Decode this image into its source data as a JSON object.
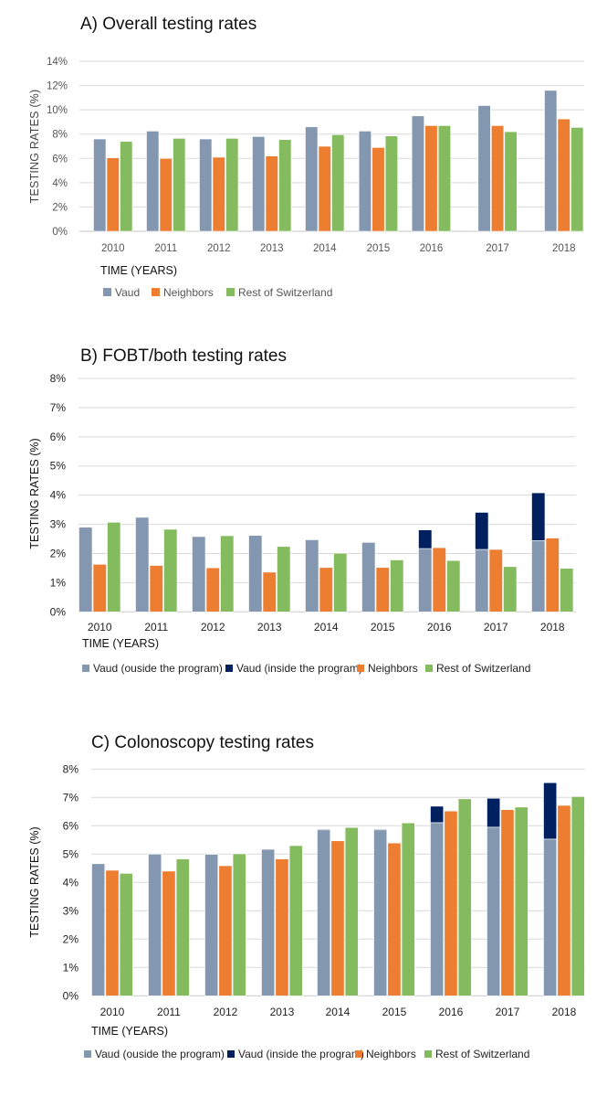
{
  "chart_data": [
    {
      "id": "A",
      "type": "bar",
      "title": "A) Overall testing rates",
      "xlabel": "TIME (YEARS)",
      "ylabel": "TESTING RATES (%)",
      "ylim": [
        0,
        14
      ],
      "yticks": [
        "0%",
        "2%",
        "4%",
        "6%",
        "8%",
        "10%",
        "12%",
        "14%"
      ],
      "ytick_values": [
        0,
        2,
        4,
        6,
        8,
        10,
        12,
        14
      ],
      "grid": true,
      "legend_position": "bottom-left",
      "categories": [
        "2010",
        "2011",
        "2012",
        "2013",
        "2014",
        "2015",
        "2016",
        "2017",
        "2018"
      ],
      "series": [
        {
          "name": "Vaud",
          "color": "#8497b0",
          "values": [
            7.6,
            8.25,
            7.6,
            7.8,
            8.6,
            8.25,
            9.5,
            10.35,
            11.6
          ]
        },
        {
          "name": "Neighbors",
          "color": "#ed7d31",
          "values": [
            6.05,
            6.0,
            6.1,
            6.2,
            7.0,
            6.9,
            8.7,
            8.7,
            9.25
          ]
        },
        {
          "name": "Rest of Switzerland",
          "color": "#84bb5f",
          "values": [
            7.4,
            7.65,
            7.65,
            7.55,
            7.95,
            7.85,
            8.7,
            8.2,
            8.55
          ]
        }
      ]
    },
    {
      "id": "B",
      "type": "bar",
      "stacked_first_group": true,
      "title": "B) FOBT/both testing rates",
      "xlabel": "TIME (YEARS)",
      "ylabel": "TESTING RATES (%)",
      "ylim": [
        0,
        8
      ],
      "yticks": [
        "0%",
        "1%",
        "2%",
        "3%",
        "4%",
        "5%",
        "6%",
        "7%",
        "8%"
      ],
      "ytick_values": [
        0,
        1,
        2,
        3,
        4,
        5,
        6,
        7,
        8
      ],
      "grid": true,
      "legend_position": "bottom",
      "categories": [
        "2010",
        "2011",
        "2012",
        "2013",
        "2014",
        "2015",
        "2016",
        "2017",
        "2018"
      ],
      "series": [
        {
          "name": "Vaud (ouside the program)",
          "color": "#8497b0",
          "stack": "vaud",
          "values": [
            2.9,
            3.24,
            2.58,
            2.62,
            2.47,
            2.38,
            2.17,
            2.14,
            2.44
          ]
        },
        {
          "name": "Vaud (inside the program)",
          "color": "#002060",
          "stack": "vaud",
          "values": [
            0,
            0,
            0,
            0,
            0,
            0,
            0.64,
            1.27,
            1.64
          ]
        },
        {
          "name": "Neighbors",
          "color": "#ed7d31",
          "values": [
            1.63,
            1.59,
            1.51,
            1.36,
            1.52,
            1.52,
            2.2,
            2.14,
            2.53
          ]
        },
        {
          "name": "Rest of Switzerland",
          "color": "#84bb5f",
          "values": [
            3.07,
            2.83,
            2.61,
            2.24,
            2.01,
            1.78,
            1.76,
            1.55,
            1.49
          ]
        }
      ]
    },
    {
      "id": "C",
      "type": "bar",
      "stacked_first_group": true,
      "title": "C) Colonoscopy testing rates",
      "xlabel": "TIME (YEARS)",
      "ylabel": "TESTING RATES (%)",
      "ylim": [
        0,
        8
      ],
      "yticks": [
        "0%",
        "1%",
        "2%",
        "3%",
        "4%",
        "5%",
        "6%",
        "7%",
        "8%"
      ],
      "ytick_values": [
        0,
        1,
        2,
        3,
        4,
        5,
        6,
        7,
        8
      ],
      "grid": true,
      "legend_position": "bottom",
      "categories": [
        "2010",
        "2011",
        "2012",
        "2013",
        "2014",
        "2015",
        "2016",
        "2017",
        "2018"
      ],
      "series": [
        {
          "name": "Vaud (ouside the program)",
          "color": "#8497b0",
          "stack": "vaud",
          "values": [
            4.66,
            5.0,
            4.99,
            5.17,
            5.86,
            5.86,
            6.11,
            5.95,
            5.53
          ]
        },
        {
          "name": "Vaud (inside the program)",
          "color": "#002060",
          "stack": "vaud",
          "values": [
            0,
            0,
            0,
            0,
            0.02,
            0.02,
            0.58,
            1.02,
            1.99
          ]
        },
        {
          "name": "Neighbors",
          "color": "#ed7d31",
          "values": [
            4.43,
            4.4,
            4.59,
            4.83,
            5.47,
            5.39,
            6.52,
            6.57,
            6.72
          ]
        },
        {
          "name": "Rest of Switzerland",
          "color": "#84bb5f",
          "values": [
            4.32,
            4.83,
            5.01,
            5.3,
            5.94,
            6.1,
            6.95,
            6.66,
            7.03
          ]
        }
      ]
    }
  ]
}
